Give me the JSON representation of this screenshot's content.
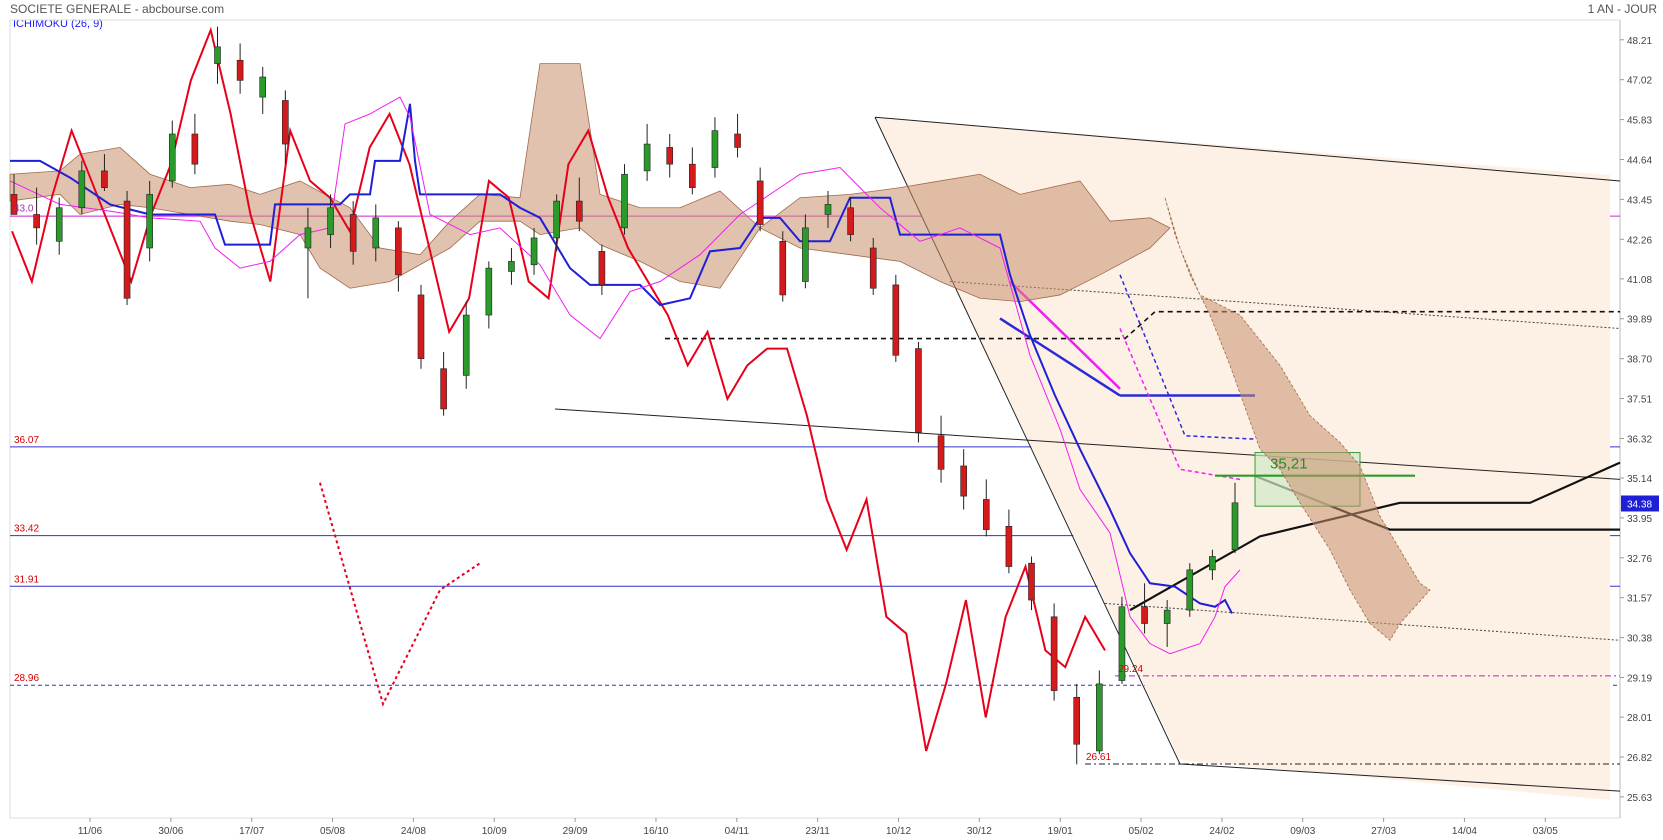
{
  "header": {
    "title": "SOCIETE GENERALE - abcbourse.com",
    "period": "1 AN - JOUR",
    "indicator": "ICHIMOKU (26, 9)"
  },
  "colors": {
    "price": "#e8001a",
    "kijun": "#1f1fd6",
    "tenkan": "#f21ef2",
    "cloud": "#c9906e",
    "up_candle": "#2a9a2a",
    "down_candle": "#d41a1a",
    "h_level": "#3333cc",
    "level_text": "#d40000"
  },
  "chart_data": {
    "type": "candlestick",
    "title": "SOCIETE GENERALE - abcbourse.com",
    "ylim": [
      25.0,
      48.8
    ],
    "y_ticks": [
      "48.21",
      "47.02",
      "45.83",
      "44.64",
      "43.45",
      "42.26",
      "41.08",
      "39.89",
      "38.70",
      "37.51",
      "36.32",
      "35.14",
      "33.95",
      "32.76",
      "31.57",
      "30.38",
      "29.19",
      "28.01",
      "26.82",
      "25.63"
    ],
    "x_ticks": [
      "11/06",
      "30/06",
      "17/07",
      "05/08",
      "24/08",
      "10/09",
      "29/09",
      "16/10",
      "04/11",
      "23/11",
      "10/12",
      "30/12",
      "19/01",
      "05/02",
      "24/02",
      "09/03",
      "27/03",
      "14/04",
      "03/05"
    ],
    "last_price": "34.38",
    "levels": [
      {
        "label": "36.07",
        "value": 36.07,
        "style": "solid"
      },
      {
        "label": "33.42",
        "value": 33.42,
        "style": "solid"
      },
      {
        "label": "31.91",
        "value": 31.91,
        "style": "solid"
      },
      {
        "label": "28.96",
        "value": 28.96,
        "style": "dashed"
      }
    ],
    "annotations": [
      {
        "text": "35,21",
        "value": 35.21
      },
      {
        "text": "29.24",
        "value": 29.24
      },
      {
        "text": "26.61",
        "value": 26.61
      },
      {
        "text": "43.0",
        "value": 43.0
      }
    ],
    "price_line_sampled": [
      42.5,
      41.0,
      43.5,
      45.5,
      44.0,
      42.5,
      41.0,
      43.0,
      44.5,
      47.0,
      48.5,
      46.0,
      43.0,
      41.0,
      45.5,
      44.0,
      43.5,
      42.5,
      45.0,
      46.0,
      44.5,
      42.0,
      39.5,
      40.5,
      44.0,
      43.5,
      41.0,
      40.5,
      44.5,
      45.5,
      43.5,
      42.0,
      41.0,
      40.0,
      38.5,
      39.5,
      37.5,
      38.5,
      39.0,
      39.0,
      37.0,
      34.5,
      33.0,
      34.5,
      31.0,
      30.5,
      27.0,
      29.0,
      31.5,
      28.0,
      31.0,
      32.5,
      30.0,
      29.5,
      31.0,
      30.0
    ],
    "candles_sampled": [
      [
        43.6,
        44.2,
        43.0,
        43.0
      ],
      [
        43.0,
        43.8,
        42.1,
        42.6
      ],
      [
        42.2,
        43.5,
        41.8,
        43.2
      ],
      [
        43.2,
        44.6,
        43.0,
        44.3
      ],
      [
        44.3,
        44.8,
        43.7,
        43.8
      ],
      [
        43.4,
        43.7,
        40.3,
        40.5
      ],
      [
        42.0,
        44.0,
        41.6,
        43.6
      ],
      [
        44.0,
        45.8,
        43.8,
        45.4
      ],
      [
        45.4,
        46.0,
        44.2,
        44.5
      ],
      [
        47.5,
        48.6,
        46.9,
        48.0
      ],
      [
        47.6,
        48.1,
        46.6,
        47.0
      ],
      [
        46.5,
        47.4,
        46.0,
        47.1
      ],
      [
        46.4,
        46.7,
        44.5,
        45.1
      ],
      [
        42.0,
        43.2,
        40.5,
        42.6
      ],
      [
        42.4,
        43.6,
        42.0,
        43.2
      ],
      [
        43.0,
        43.4,
        41.5,
        41.9
      ],
      [
        42.0,
        43.3,
        41.6,
        42.9
      ],
      [
        42.6,
        42.8,
        40.7,
        41.2
      ],
      [
        40.6,
        40.9,
        38.4,
        38.7
      ],
      [
        38.4,
        38.9,
        37.0,
        37.2
      ],
      [
        38.2,
        40.4,
        37.8,
        40.0
      ],
      [
        40.0,
        41.6,
        39.6,
        41.4
      ],
      [
        41.3,
        42.0,
        40.9,
        41.6
      ],
      [
        41.5,
        42.6,
        41.2,
        42.3
      ],
      [
        42.3,
        43.6,
        41.9,
        43.4
      ],
      [
        43.4,
        44.1,
        42.5,
        42.8
      ],
      [
        41.9,
        42.1,
        40.6,
        40.9
      ],
      [
        42.6,
        44.5,
        42.4,
        44.2
      ],
      [
        44.3,
        45.7,
        44.0,
        45.1
      ],
      [
        45.0,
        45.4,
        44.1,
        44.5
      ],
      [
        44.5,
        45.0,
        43.6,
        43.8
      ],
      [
        44.4,
        45.9,
        44.1,
        45.5
      ],
      [
        45.4,
        46.0,
        44.7,
        45.0
      ],
      [
        44.0,
        44.4,
        42.5,
        42.7
      ],
      [
        42.2,
        42.5,
        40.4,
        40.6
      ],
      [
        41.0,
        43.0,
        40.8,
        42.6
      ],
      [
        43.0,
        43.7,
        42.6,
        43.3
      ],
      [
        43.2,
        43.5,
        42.2,
        42.4
      ],
      [
        42.0,
        42.3,
        40.6,
        40.8
      ],
      [
        40.9,
        41.2,
        38.6,
        38.8
      ],
      [
        39.0,
        39.2,
        36.2,
        36.5
      ],
      [
        36.4,
        37.0,
        35.0,
        35.4
      ],
      [
        35.5,
        36.0,
        34.2,
        34.6
      ],
      [
        34.5,
        35.1,
        33.4,
        33.6
      ],
      [
        33.7,
        34.2,
        32.3,
        32.5
      ],
      [
        32.6,
        32.8,
        31.2,
        31.5
      ],
      [
        31.0,
        31.4,
        28.5,
        28.8
      ],
      [
        28.6,
        29.0,
        26.6,
        27.2
      ],
      [
        27.0,
        29.4,
        26.9,
        29.0
      ],
      [
        29.1,
        31.6,
        29.0,
        31.3
      ],
      [
        31.3,
        32.0,
        30.5,
        30.8
      ],
      [
        30.8,
        31.5,
        30.1,
        31.2
      ],
      [
        31.2,
        32.6,
        31.0,
        32.4
      ],
      [
        32.4,
        33.0,
        32.1,
        32.8
      ],
      [
        33.0,
        35.0,
        32.9,
        34.4
      ]
    ]
  }
}
